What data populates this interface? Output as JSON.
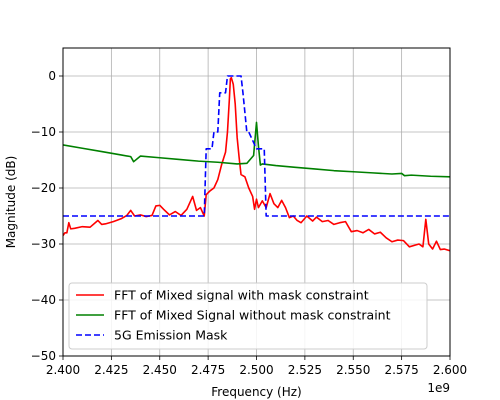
{
  "chart_data": {
    "type": "line",
    "title": "",
    "xlabel": "Frequency (Hz)",
    "ylabel": "Magnitude (dB)",
    "x_offset_label": "1e9",
    "xlim": [
      2.4,
      2.6
    ],
    "ylim": [
      -50,
      5
    ],
    "x_ticks": [
      2.4,
      2.425,
      2.45,
      2.475,
      2.5,
      2.525,
      2.55,
      2.575,
      2.6
    ],
    "x_tick_labels": [
      "2.400",
      "2.425",
      "2.450",
      "2.475",
      "2.500",
      "2.525",
      "2.550",
      "2.575",
      "2.600"
    ],
    "y_ticks": [
      -50,
      -40,
      -30,
      -20,
      -10,
      0
    ],
    "y_tick_labels": [
      "−50",
      "−40",
      "−30",
      "−20",
      "−10",
      "0"
    ],
    "grid": true,
    "legend_position": "lower-left",
    "series": [
      {
        "name": "FFT of Mixed signal with mask constraint",
        "color": "#ff0000",
        "style": "solid",
        "x": [
          2.4,
          2.401,
          2.402,
          2.403,
          2.404,
          2.406,
          2.41,
          2.414,
          2.418,
          2.42,
          2.422,
          2.426,
          2.43,
          2.433,
          2.435,
          2.437,
          2.44,
          2.443,
          2.446,
          2.448,
          2.45,
          2.452,
          2.455,
          2.458,
          2.461,
          2.464,
          2.467,
          2.469,
          2.471,
          2.473,
          2.474,
          2.476,
          2.478,
          2.48,
          2.482,
          2.484,
          2.485,
          2.486,
          2.4865,
          2.487,
          2.488,
          2.489,
          2.49,
          2.491,
          2.492,
          2.494,
          2.496,
          2.498,
          2.499,
          2.5,
          2.501,
          2.503,
          2.505,
          2.507,
          2.509,
          2.511,
          2.513,
          2.515,
          2.517,
          2.519,
          2.521,
          2.523,
          2.526,
          2.529,
          2.531,
          2.534,
          2.537,
          2.54,
          2.543,
          2.546,
          2.549,
          2.552,
          2.555,
          2.558,
          2.561,
          2.564,
          2.567,
          2.57,
          2.573,
          2.576,
          2.579,
          2.582,
          2.584,
          2.586,
          2.5875,
          2.589,
          2.591,
          2.593,
          2.595,
          2.597,
          2.6
        ],
        "y": [
          -28.5,
          -28.0,
          -28.0,
          -26.2,
          -27.3,
          -27.2,
          -26.9,
          -27.0,
          -25.8,
          -26.5,
          -26.4,
          -26.0,
          -25.5,
          -24.9,
          -24.0,
          -25.0,
          -24.8,
          -25.1,
          -24.9,
          -23.2,
          -23.1,
          -23.8,
          -24.8,
          -24.2,
          -24.9,
          -23.8,
          -21.5,
          -24.0,
          -23.5,
          -25.0,
          -21.2,
          -20.5,
          -20.0,
          -18.5,
          -15.8,
          -13.6,
          -10.0,
          -4.0,
          -0.5,
          -0.3,
          -1.5,
          -5.0,
          -11.0,
          -14.5,
          -17.6,
          -18.0,
          -20.0,
          -21.5,
          -23.8,
          -22.0,
          -23.5,
          -22.3,
          -23.5,
          -21.0,
          -22.8,
          -23.5,
          -22.2,
          -23.5,
          -25.3,
          -25.0,
          -25.8,
          -26.2,
          -25.0,
          -25.9,
          -25.2,
          -26.0,
          -25.8,
          -26.5,
          -26.2,
          -26.0,
          -27.8,
          -27.6,
          -28.0,
          -27.4,
          -28.2,
          -27.9,
          -28.9,
          -29.6,
          -29.3,
          -29.4,
          -30.5,
          -30.2,
          -30.0,
          -30.5,
          -25.6,
          -30.0,
          -30.9,
          -29.5,
          -31.0,
          -30.9,
          -31.2
        ]
      },
      {
        "name": "FFT of Mixed Signal without mask constraint",
        "color": "#008000",
        "style": "solid",
        "x": [
          2.4,
          2.41,
          2.42,
          2.43,
          2.435,
          2.4365,
          2.44,
          2.45,
          2.46,
          2.47,
          2.48,
          2.49,
          2.495,
          2.4985,
          2.5,
          2.501,
          2.502,
          2.503,
          2.51,
          2.52,
          2.53,
          2.54,
          2.55,
          2.56,
          2.57,
          2.575,
          2.5765,
          2.58,
          2.59,
          2.6
        ],
        "y": [
          -12.3,
          -12.9,
          -13.5,
          -14.1,
          -14.4,
          -15.3,
          -14.3,
          -14.6,
          -14.9,
          -15.2,
          -15.4,
          -15.7,
          -15.6,
          -14.2,
          -8.3,
          -12.5,
          -15.9,
          -15.7,
          -16.0,
          -16.3,
          -16.6,
          -16.9,
          -17.1,
          -17.3,
          -17.5,
          -17.4,
          -17.8,
          -17.7,
          -17.9,
          -18.0
        ]
      },
      {
        "name": "5G Emission Mask",
        "color": "#0000ff",
        "style": "dashed",
        "x": [
          2.4,
          2.473,
          2.474,
          2.477,
          2.478,
          2.48,
          2.481,
          2.484,
          2.485,
          2.488,
          2.489,
          2.492,
          2.493,
          2.495,
          2.496,
          2.5,
          2.501,
          2.504,
          2.505,
          2.6
        ],
        "y": [
          -25.0,
          -25.0,
          -13.0,
          -13.0,
          -10.0,
          -10.0,
          -3.0,
          -3.0,
          0.0,
          0.0,
          0.0,
          0.0,
          -3.0,
          -10.0,
          -10.0,
          -13.0,
          -13.0,
          -13.0,
          -25.0,
          -25.0
        ]
      }
    ]
  }
}
